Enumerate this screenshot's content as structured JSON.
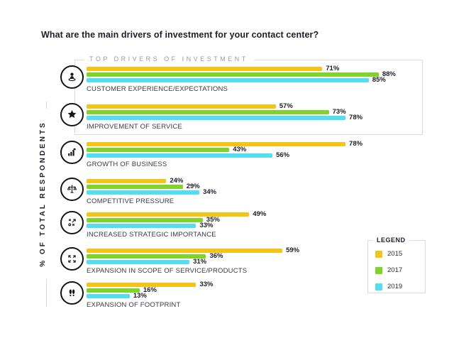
{
  "title": "What are the main drivers of investment for your contact center?",
  "axis_label": "% OF TOTAL RESPONDENTS",
  "group_box_label": "TOP DRIVERS OF INVESTMENT",
  "legend": {
    "title": "LEGEND"
  },
  "chart_data": {
    "type": "bar",
    "orientation": "horizontal",
    "unit": "%",
    "xlim": [
      0,
      100
    ],
    "title": "What are the main drivers of investment for your contact center?",
    "ylabel": "% OF TOTAL RESPONDENTS",
    "annotation": "Top two categories are enclosed in a box labeled TOP DRIVERS OF INVESTMENT; legend at right lists years 2015, 2017, 2019",
    "categories": [
      "CUSTOMER EXPERIENCE/EXPECTATIONS",
      "IMPROVEMENT OF SERVICE",
      "GROWTH OF BUSINESS",
      "COMPETITIVE PRESSURE",
      "INCREASED STRATEGIC IMPORTANCE",
      "EXPANSION IN SCOPE OF SERVICE/PRODUCTS",
      "EXPANSION OF FOOTPRINT"
    ],
    "category_icons": [
      "person-on-pedestal-icon",
      "star-icon",
      "growth-chart-icon",
      "balance-scales-icon",
      "strategy-icon",
      "expand-arrows-icon",
      "footprints-icon"
    ],
    "series": [
      {
        "name": "2015",
        "color": "#F2C517",
        "values": [
          71,
          57,
          78,
          24,
          49,
          59,
          33
        ]
      },
      {
        "name": "2017",
        "color": "#7FD32B",
        "values": [
          88,
          73,
          43,
          29,
          35,
          36,
          16
        ]
      },
      {
        "name": "2019",
        "color": "#53DEF2",
        "values": [
          85,
          78,
          56,
          34,
          33,
          31,
          13
        ]
      }
    ]
  }
}
